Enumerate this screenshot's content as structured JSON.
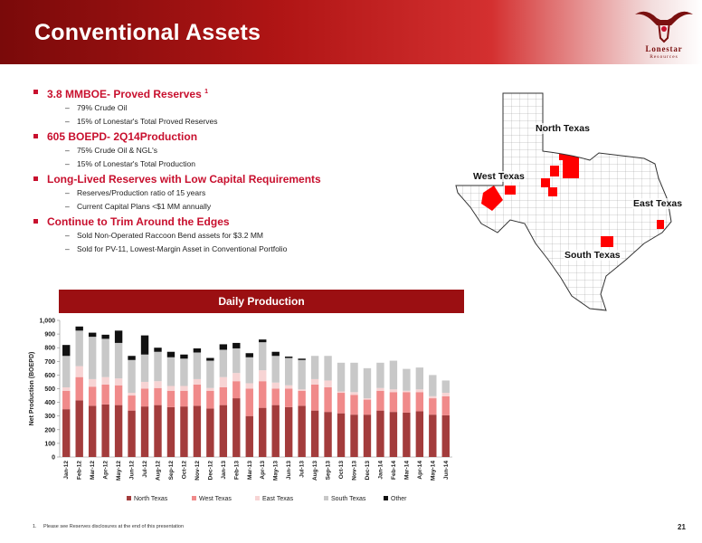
{
  "header": {
    "title": "Conventional Assets"
  },
  "logo": {
    "name": "Lonestar",
    "sub": "Resources"
  },
  "bullets": [
    {
      "text": "3.8 MMBOE- Proved Reserves",
      "sup": "1",
      "subs": [
        "79% Crude Oil",
        "15% of Lonestar's Total Proved Reserves"
      ]
    },
    {
      "text": "605 BOEPD- 2Q14Production",
      "sup": "",
      "subs": [
        "75% Crude Oil & NGL's",
        "15% of Lonestar's Total Production"
      ]
    },
    {
      "text": "Long-Lived Reserves with Low Capital Requirements",
      "sup": "",
      "subs": [
        "Reserves/Production ratio of 15 years",
        "Current Capital Plans <$1 MM annually"
      ]
    },
    {
      "text": "Continue to Trim Around the Edges",
      "sup": "",
      "subs": [
        "Sold Non-Operated Raccoon Bend assets for $3.2 MM",
        "Sold for PV-11, Lowest-Margin Asset in Conventional Portfolio"
      ]
    }
  ],
  "map": {
    "labels": {
      "north": "North Texas",
      "west": "West Texas",
      "east": "East Texas",
      "south": "South Texas"
    },
    "highlight_color": "#ff0000"
  },
  "chart_header": "Daily Production",
  "chart_data": {
    "type": "bar",
    "stacked": true,
    "ylabel": "Net Production (BOEPD)",
    "ylim": [
      0,
      1000
    ],
    "yticks": [
      "0",
      "100",
      "200",
      "300",
      "400",
      "500",
      "600",
      "700",
      "800",
      "900",
      "1,000"
    ],
    "categories": [
      "Jan-12",
      "Feb-12",
      "Mar-12",
      "Apr-12",
      "May-12",
      "Jun-12",
      "Jul-12",
      "Aug-12",
      "Sep-12",
      "Oct-12",
      "Nov-12",
      "Dec-12",
      "Jan-13",
      "Feb-13",
      "Mar-13",
      "Apr-13",
      "May-13",
      "Jun-13",
      "Jul-13",
      "Aug-13",
      "Sep-13",
      "Oct-13",
      "Nov-13",
      "Dec-13",
      "Jan-14",
      "Feb-14",
      "Mar-14",
      "Apr-14",
      "May-14",
      "Jun-14"
    ],
    "series": [
      {
        "name": "North Texas",
        "color": "#a33c3c",
        "values": [
          350,
          415,
          375,
          385,
          380,
          340,
          370,
          380,
          365,
          370,
          375,
          355,
          380,
          430,
          300,
          360,
          380,
          365,
          375,
          340,
          330,
          320,
          310,
          310,
          340,
          330,
          325,
          335,
          310,
          305
        ]
      },
      {
        "name": "West Texas",
        "color": "#f08a8a",
        "values": [
          135,
          170,
          140,
          145,
          145,
          110,
          130,
          125,
          120,
          115,
          155,
          130,
          130,
          125,
          200,
          195,
          120,
          135,
          110,
          190,
          180,
          150,
          145,
          110,
          145,
          145,
          150,
          140,
          120,
          140
        ]
      },
      {
        "name": "East Texas",
        "color": "#f7d4d4",
        "values": [
          25,
          80,
          55,
          55,
          50,
          20,
          50,
          50,
          35,
          35,
          40,
          20,
          75,
          60,
          40,
          80,
          45,
          25,
          10,
          40,
          50,
          10,
          20,
          10,
          20,
          20,
          10,
          20,
          15,
          25
        ]
      },
      {
        "name": "South Texas",
        "color": "#c8c8c8",
        "values": [
          230,
          260,
          310,
          280,
          260,
          240,
          200,
          215,
          210,
          200,
          195,
          200,
          200,
          180,
          190,
          205,
          195,
          200,
          215,
          170,
          180,
          210,
          215,
          220,
          185,
          210,
          160,
          160,
          155,
          90
        ]
      },
      {
        "name": "Other",
        "color": "#111111",
        "values": [
          80,
          30,
          30,
          30,
          90,
          30,
          140,
          30,
          40,
          30,
          30,
          20,
          40,
          40,
          30,
          20,
          30,
          10,
          10,
          0,
          0,
          0,
          0,
          0,
          0,
          0,
          0,
          0,
          0,
          0
        ]
      }
    ],
    "legend_position": "bottom"
  },
  "footnote": {
    "num": "1.",
    "text": "Please see Reserves disclosures at the end of this presentation"
  },
  "page_number": "21"
}
